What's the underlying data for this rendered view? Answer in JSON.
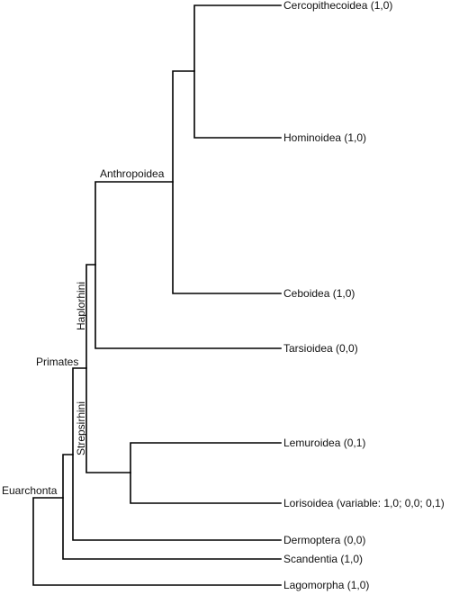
{
  "tree": {
    "line_color": "#000000",
    "taxa": [
      {
        "id": "cercopithecoidea",
        "label": "Cercopithecoidea (1,0)"
      },
      {
        "id": "hominoidea",
        "label": "Hominoidea (1,0)"
      },
      {
        "id": "ceboidea",
        "label": "Ceboidea (1,0)"
      },
      {
        "id": "tarsioidea",
        "label": "Tarsioidea (0,0)"
      },
      {
        "id": "lemuroidea",
        "label": "Lemuroidea (0,1)"
      },
      {
        "id": "lorisoidea",
        "label": "Lorisoidea (variable: 1,0; 0,0; 0,1)"
      },
      {
        "id": "dermoptera",
        "label": "Dermoptera (0,0)"
      },
      {
        "id": "scandentia",
        "label": "Scandentia (1,0)"
      },
      {
        "id": "lagomorpha",
        "label": "Lagomorpha (1,0)"
      }
    ],
    "clades": {
      "anthropoidea": "Anthropoidea",
      "haplorhini": "Haplorhini",
      "strepsirhini": "Strepsirhini",
      "primates": "Primates",
      "euarchonta": "Euarchonta"
    }
  }
}
